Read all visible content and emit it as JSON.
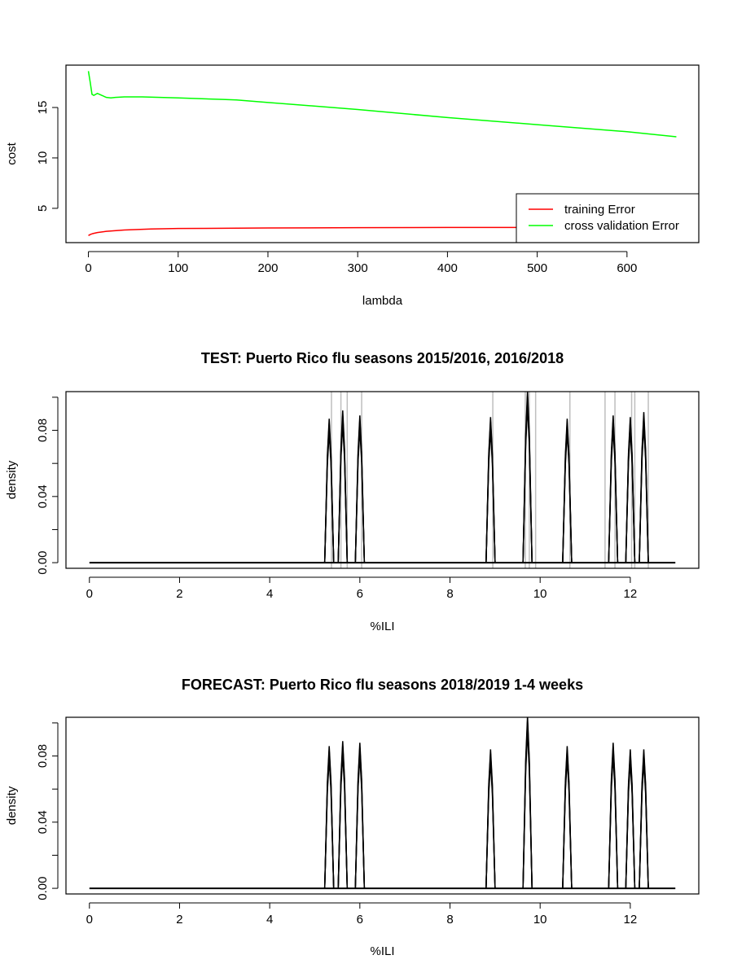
{
  "chart_data": [
    {
      "type": "line",
      "title": "",
      "xlabel": "lambda",
      "ylabel": "cost",
      "xlim": [
        -25,
        680
      ],
      "ylim": [
        1.6,
        19.2
      ],
      "xticks": [
        0,
        100,
        200,
        300,
        400,
        500,
        600
      ],
      "yticks": [
        5,
        10,
        15
      ],
      "legend": {
        "position": "bottom-right"
      },
      "series": [
        {
          "name": "training Error",
          "color": "#ff0000",
          "x": [
            0,
            2,
            5,
            10,
            20,
            40,
            70,
            100,
            200,
            300,
            400,
            500,
            655
          ],
          "y": [
            2.3,
            2.4,
            2.5,
            2.6,
            2.72,
            2.85,
            2.95,
            3.0,
            3.05,
            3.08,
            3.1,
            3.1,
            3.1
          ]
        },
        {
          "name": "cross validation Error",
          "color": "#00ff00",
          "x": [
            0,
            2,
            4,
            6,
            10,
            15,
            20,
            25,
            30,
            40,
            60,
            100,
            150,
            165,
            200,
            300,
            400,
            500,
            600,
            655
          ],
          "y": [
            18.6,
            17.5,
            16.3,
            16.2,
            16.4,
            16.2,
            16.0,
            15.95,
            16.0,
            16.05,
            16.05,
            15.95,
            15.8,
            15.75,
            15.5,
            14.8,
            14.0,
            13.3,
            12.6,
            12.1
          ]
        }
      ]
    },
    {
      "type": "line",
      "title": "TEST: Puerto Rico  flu seasons 2015/2016, 2016/2018",
      "xlabel": "%ILI",
      "ylabel": "density",
      "xlim": [
        -0.52,
        13.52
      ],
      "ylim": [
        -0.0034,
        0.1034
      ],
      "xticks": [
        0,
        2,
        4,
        6,
        8,
        10,
        12
      ],
      "yticks": [
        0.0,
        0.04,
        0.08
      ],
      "yticks_minor": [
        0.02,
        0.06,
        0.1
      ],
      "grid": false,
      "baseline_x": [
        0,
        13
      ],
      "peaks": [
        {
          "x": 5.32,
          "y": 0.087
        },
        {
          "x": 5.62,
          "y": 0.092
        },
        {
          "x": 6.0,
          "y": 0.089
        },
        {
          "x": 8.9,
          "y": 0.088
        },
        {
          "x": 9.72,
          "y": 0.104
        },
        {
          "x": 10.6,
          "y": 0.087
        },
        {
          "x": 11.62,
          "y": 0.089
        },
        {
          "x": 12.0,
          "y": 0.088
        },
        {
          "x": 12.3,
          "y": 0.091
        }
      ],
      "peak_halfwidth": 0.1,
      "vlines": [
        5.37,
        5.58,
        5.72,
        6.04,
        8.95,
        9.67,
        9.76,
        9.9,
        10.66,
        11.44,
        11.66,
        12.03,
        12.1,
        12.4
      ],
      "vline_color": "#bebebe"
    },
    {
      "type": "line",
      "title": "FORECAST: Puerto Rico flu seasons 2018/2019 1-4 weeks",
      "xlabel": "%ILI",
      "ylabel": "density",
      "xlim": [
        -0.52,
        13.52
      ],
      "ylim": [
        -0.0034,
        0.1034
      ],
      "xticks": [
        0,
        2,
        4,
        6,
        8,
        10,
        12
      ],
      "yticks": [
        0.0,
        0.04,
        0.08
      ],
      "yticks_minor": [
        0.02,
        0.06,
        0.1
      ],
      "grid": false,
      "baseline_x": [
        0,
        13
      ],
      "peaks": [
        {
          "x": 5.32,
          "y": 0.086
        },
        {
          "x": 5.62,
          "y": 0.089
        },
        {
          "x": 6.0,
          "y": 0.088
        },
        {
          "x": 8.9,
          "y": 0.084
        },
        {
          "x": 9.72,
          "y": 0.104
        },
        {
          "x": 10.6,
          "y": 0.086
        },
        {
          "x": 11.62,
          "y": 0.088
        },
        {
          "x": 12.0,
          "y": 0.084
        },
        {
          "x": 12.3,
          "y": 0.084
        }
      ],
      "peak_halfwidth": 0.1,
      "vlines": []
    }
  ]
}
